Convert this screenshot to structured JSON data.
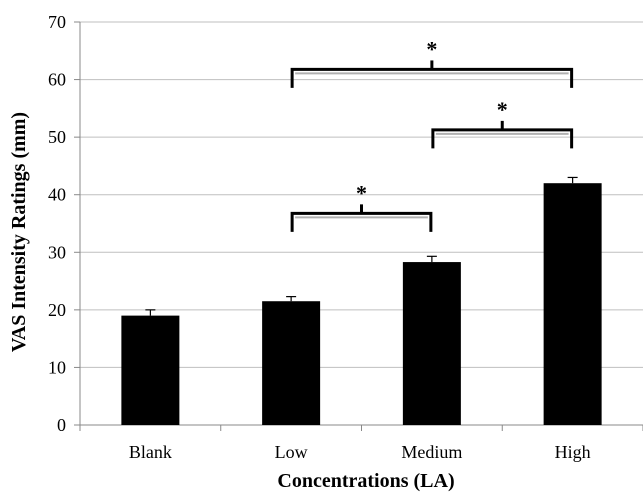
{
  "chart_data": {
    "type": "bar",
    "title": "",
    "xlabel": "Concentrations (LA)",
    "ylabel": "VAS Intensity Ratings (mm)",
    "categories": [
      "Blank",
      "Low",
      "Medium",
      "High"
    ],
    "values": [
      19,
      21.5,
      28.3,
      42
    ],
    "errors": [
      1,
      0.8,
      1,
      1
    ],
    "ylim": [
      0,
      70
    ],
    "yticks": [
      0,
      10,
      20,
      30,
      40,
      50,
      60,
      70
    ],
    "grid": true,
    "bar_color": "#000000",
    "grid_color": "#bfbfbf",
    "significance": [
      {
        "from": "Low",
        "to": "Medium",
        "level": 36.5,
        "label": "*"
      },
      {
        "from": "Medium",
        "to": "High",
        "level": 51,
        "label": "*"
      },
      {
        "from": "Low",
        "to": "High",
        "level": 61.5,
        "label": "*"
      }
    ]
  }
}
